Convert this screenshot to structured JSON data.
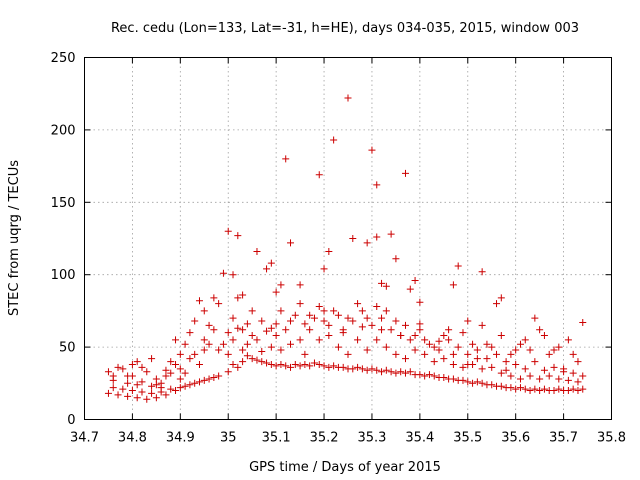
{
  "chart_data": {
    "type": "scatter",
    "title": "Rec. cedu (Lon=133, Lat=-31, h=HE), days 034-035, 2015, window 003",
    "xlabel": "GPS time / Days of year 2015",
    "ylabel": "STEC from uqrg / TECUs",
    "xlim": [
      34.7,
      35.8
    ],
    "ylim": [
      0,
      250
    ],
    "x_ticks": [
      34.7,
      34.8,
      34.9,
      35,
      35.1,
      35.2,
      35.3,
      35.4,
      35.5,
      35.6,
      35.7,
      35.8
    ],
    "x_tick_labels": [
      "34.7",
      "34.8",
      "34.9",
      "35",
      "35.1",
      "35.2",
      "35.3",
      "35.4",
      "35.5",
      "35.6",
      "35.7",
      "35.8"
    ],
    "y_ticks": [
      0,
      50,
      100,
      150,
      200,
      250
    ],
    "y_tick_labels": [
      "0",
      "50",
      "100",
      "150",
      "200",
      "250"
    ],
    "grid": true,
    "marker": "+",
    "color": "#cc0000",
    "series": [
      {
        "name": "STEC",
        "points": [
          [
            34.75,
            18
          ],
          [
            34.76,
            22
          ],
          [
            34.77,
            17
          ],
          [
            34.78,
            21
          ],
          [
            34.79,
            16
          ],
          [
            34.8,
            20
          ],
          [
            34.81,
            15
          ],
          [
            34.82,
            19
          ],
          [
            34.83,
            14
          ],
          [
            34.84,
            18
          ],
          [
            34.85,
            15
          ],
          [
            34.86,
            19
          ],
          [
            34.87,
            17
          ],
          [
            34.88,
            21
          ],
          [
            34.89,
            20
          ],
          [
            34.9,
            22
          ],
          [
            34.91,
            23
          ],
          [
            34.92,
            24
          ],
          [
            34.93,
            25
          ],
          [
            34.94,
            26
          ],
          [
            34.95,
            27
          ],
          [
            34.96,
            28
          ],
          [
            34.97,
            29
          ],
          [
            34.98,
            30
          ],
          [
            34.75,
            33
          ],
          [
            34.76,
            27
          ],
          [
            34.78,
            35
          ],
          [
            34.79,
            25
          ],
          [
            34.8,
            38
          ],
          [
            34.81,
            24
          ],
          [
            34.82,
            36
          ],
          [
            34.84,
            42
          ],
          [
            34.84,
            23
          ],
          [
            34.86,
            22
          ],
          [
            34.87,
            30
          ],
          [
            34.88,
            32
          ],
          [
            34.89,
            38
          ],
          [
            34.9,
            45
          ],
          [
            34.91,
            52
          ],
          [
            34.92,
            60
          ],
          [
            34.93,
            68
          ],
          [
            34.94,
            82
          ],
          [
            34.95,
            75
          ],
          [
            34.96,
            65
          ],
          [
            34.97,
            84
          ],
          [
            34.98,
            80
          ],
          [
            34.99,
            101
          ],
          [
            34.77,
            36
          ],
          [
            34.79,
            30
          ],
          [
            34.81,
            40
          ],
          [
            34.83,
            33
          ],
          [
            34.85,
            28
          ],
          [
            34.86,
            25
          ],
          [
            34.88,
            40
          ],
          [
            34.89,
            55
          ],
          [
            34.9,
            35
          ],
          [
            34.91,
            32
          ],
          [
            34.93,
            45
          ],
          [
            34.94,
            38
          ],
          [
            34.95,
            55
          ],
          [
            34.97,
            62
          ],
          [
            34.98,
            48
          ],
          [
            35.0,
            33
          ],
          [
            35.01,
            38
          ],
          [
            35.02,
            36
          ],
          [
            35.03,
            40
          ],
          [
            35.04,
            44
          ],
          [
            35.05,
            42
          ],
          [
            35.06,
            41
          ],
          [
            35.07,
            40
          ],
          [
            35.08,
            39
          ],
          [
            35.09,
            38
          ],
          [
            35.1,
            37
          ],
          [
            35.11,
            38
          ],
          [
            35.12,
            37
          ],
          [
            35.13,
            36
          ],
          [
            35.14,
            38
          ],
          [
            35.15,
            37
          ],
          [
            35.16,
            38
          ],
          [
            35.17,
            37
          ],
          [
            35.18,
            39
          ],
          [
            35.19,
            38
          ],
          [
            35.2,
            37
          ],
          [
            35.21,
            36
          ],
          [
            35.22,
            37
          ],
          [
            35.23,
            36
          ],
          [
            35.24,
            36
          ],
          [
            35.25,
            35
          ],
          [
            35.26,
            35
          ],
          [
            35.27,
            36
          ],
          [
            35.28,
            35
          ],
          [
            35.29,
            34
          ],
          [
            35.3,
            35
          ],
          [
            35.31,
            34
          ],
          [
            35.32,
            33
          ],
          [
            35.33,
            34
          ],
          [
            35.34,
            33
          ],
          [
            35.35,
            32
          ],
          [
            35.36,
            33
          ],
          [
            35.37,
            32
          ],
          [
            35.38,
            33
          ],
          [
            35.39,
            31
          ],
          [
            35.4,
            31
          ],
          [
            35.41,
            30
          ],
          [
            35.42,
            31
          ],
          [
            35.43,
            30
          ],
          [
            35.44,
            29
          ],
          [
            35.45,
            29
          ],
          [
            35.46,
            28
          ],
          [
            35.47,
            28
          ],
          [
            35.48,
            27
          ],
          [
            35.49,
            27
          ],
          [
            35.5,
            26
          ],
          [
            35.51,
            25
          ],
          [
            35.52,
            26
          ],
          [
            35.53,
            25
          ],
          [
            35.54,
            24
          ],
          [
            35.55,
            24
          ],
          [
            35.56,
            23
          ],
          [
            35.57,
            23
          ],
          [
            35.58,
            22
          ],
          [
            35.59,
            22
          ],
          [
            35.6,
            21
          ],
          [
            35.61,
            22
          ],
          [
            35.62,
            21
          ],
          [
            35.63,
            20
          ],
          [
            35.64,
            21
          ],
          [
            35.65,
            20
          ],
          [
            35.66,
            21
          ],
          [
            35.67,
            20
          ],
          [
            35.68,
            20
          ],
          [
            35.69,
            21
          ],
          [
            35.7,
            20
          ],
          [
            35.71,
            20
          ],
          [
            35.72,
            21
          ],
          [
            35.73,
            20
          ],
          [
            35.74,
            21
          ],
          [
            35.0,
            45
          ],
          [
            35.0,
            60
          ],
          [
            35.01,
            55
          ],
          [
            35.02,
            63
          ],
          [
            35.03,
            48
          ],
          [
            35.04,
            52
          ],
          [
            35.05,
            75
          ],
          [
            35.06,
            55
          ],
          [
            35.07,
            47
          ],
          [
            35.08,
            61
          ],
          [
            35.09,
            50
          ],
          [
            35.1,
            58
          ],
          [
            35.11,
            48
          ],
          [
            35.12,
            62
          ],
          [
            35.13,
            52
          ],
          [
            35.14,
            72
          ],
          [
            35.15,
            55
          ],
          [
            35.16,
            45
          ],
          [
            35.17,
            62
          ],
          [
            35.18,
            70
          ],
          [
            35.19,
            55
          ],
          [
            35.2,
            68
          ],
          [
            35.21,
            58
          ],
          [
            35.22,
            75
          ],
          [
            35.23,
            50
          ],
          [
            35.24,
            62
          ],
          [
            35.25,
            45
          ],
          [
            35.26,
            68
          ],
          [
            35.27,
            55
          ],
          [
            35.28,
            75
          ],
          [
            35.29,
            48
          ],
          [
            35.3,
            65
          ],
          [
            35.31,
            55
          ],
          [
            35.32,
            70
          ],
          [
            35.33,
            50
          ],
          [
            35.34,
            62
          ],
          [
            35.35,
            45
          ],
          [
            35.36,
            58
          ],
          [
            35.37,
            42
          ],
          [
            35.38,
            55
          ],
          [
            35.39,
            48
          ],
          [
            35.4,
            62
          ],
          [
            35.41,
            45
          ],
          [
            35.42,
            52
          ],
          [
            35.43,
            40
          ],
          [
            35.44,
            48
          ],
          [
            35.45,
            42
          ],
          [
            35.46,
            55
          ],
          [
            35.47,
            38
          ],
          [
            35.48,
            50
          ],
          [
            35.49,
            36
          ],
          [
            35.5,
            45
          ],
          [
            35.51,
            38
          ],
          [
            35.52,
            48
          ],
          [
            35.53,
            35
          ],
          [
            35.54,
            42
          ],
          [
            35.55,
            36
          ],
          [
            35.56,
            45
          ],
          [
            35.57,
            32
          ],
          [
            35.58,
            40
          ],
          [
            35.59,
            30
          ],
          [
            35.6,
            38
          ],
          [
            35.61,
            28
          ],
          [
            35.62,
            35
          ],
          [
            35.63,
            30
          ],
          [
            35.64,
            40
          ],
          [
            35.65,
            28
          ],
          [
            35.66,
            34
          ],
          [
            35.67,
            30
          ],
          [
            35.68,
            36
          ],
          [
            35.69,
            28
          ],
          [
            35.7,
            33
          ],
          [
            35.71,
            27
          ],
          [
            35.72,
            32
          ],
          [
            35.73,
            26
          ],
          [
            35.74,
            30
          ],
          [
            35.01,
            70
          ],
          [
            35.03,
            62
          ],
          [
            35.05,
            58
          ],
          [
            35.07,
            68
          ],
          [
            35.09,
            63
          ],
          [
            35.11,
            75
          ],
          [
            35.13,
            68
          ],
          [
            35.15,
            80
          ],
          [
            35.17,
            72
          ],
          [
            35.19,
            78
          ],
          [
            35.21,
            65
          ],
          [
            35.23,
            72
          ],
          [
            35.25,
            70
          ],
          [
            35.27,
            80
          ],
          [
            35.29,
            70
          ],
          [
            35.31,
            78
          ],
          [
            35.33,
            75
          ],
          [
            35.35,
            68
          ],
          [
            35.37,
            65
          ],
          [
            35.39,
            58
          ],
          [
            35.41,
            55
          ],
          [
            35.43,
            50
          ],
          [
            35.45,
            58
          ],
          [
            35.47,
            45
          ],
          [
            35.49,
            60
          ],
          [
            35.51,
            52
          ],
          [
            35.53,
            65
          ],
          [
            35.55,
            50
          ],
          [
            35.57,
            58
          ],
          [
            35.59,
            45
          ],
          [
            35.61,
            52
          ],
          [
            35.63,
            48
          ],
          [
            35.65,
            62
          ],
          [
            35.67,
            45
          ],
          [
            35.69,
            50
          ],
          [
            35.71,
            55
          ],
          [
            35.73,
            40
          ],
          [
            35.74,
            67
          ],
          [
            35.0,
            130
          ],
          [
            35.02,
            127
          ],
          [
            35.01,
            100
          ],
          [
            35.03,
            86
          ],
          [
            35.02,
            84
          ],
          [
            35.06,
            116
          ],
          [
            35.08,
            104
          ],
          [
            35.09,
            108
          ],
          [
            35.1,
            88
          ],
          [
            35.11,
            93
          ],
          [
            35.12,
            180
          ],
          [
            35.13,
            122
          ],
          [
            35.15,
            93
          ],
          [
            35.19,
            169
          ],
          [
            35.2,
            104
          ],
          [
            35.21,
            116
          ],
          [
            35.22,
            193
          ],
          [
            35.25,
            222
          ],
          [
            35.26,
            125
          ],
          [
            35.29,
            122
          ],
          [
            35.3,
            186
          ],
          [
            35.31,
            162
          ],
          [
            35.31,
            126
          ],
          [
            35.32,
            94
          ],
          [
            35.33,
            92
          ],
          [
            35.34,
            128
          ],
          [
            35.35,
            111
          ],
          [
            35.37,
            170
          ],
          [
            35.38,
            90
          ],
          [
            35.39,
            96
          ],
          [
            35.4,
            81
          ],
          [
            35.47,
            93
          ],
          [
            35.48,
            106
          ],
          [
            35.5,
            68
          ],
          [
            35.53,
            102
          ],
          [
            35.56,
            80
          ],
          [
            35.57,
            84
          ],
          [
            35.64,
            70
          ],
          [
            34.76,
            30
          ],
          [
            34.8,
            30
          ],
          [
            34.82,
            26
          ],
          [
            34.85,
            24
          ],
          [
            34.87,
            34
          ],
          [
            34.9,
            28
          ],
          [
            34.92,
            42
          ],
          [
            34.95,
            48
          ],
          [
            34.96,
            52
          ],
          [
            34.99,
            52
          ],
          [
            35.04,
            66
          ],
          [
            35.1,
            66
          ],
          [
            35.16,
            66
          ],
          [
            35.2,
            75
          ],
          [
            35.24,
            60
          ],
          [
            35.28,
            64
          ],
          [
            35.32,
            62
          ],
          [
            35.36,
            58
          ],
          [
            35.4,
            66
          ],
          [
            35.44,
            54
          ],
          [
            35.46,
            62
          ],
          [
            35.5,
            38
          ],
          [
            35.52,
            42
          ],
          [
            35.54,
            52
          ],
          [
            35.58,
            34
          ],
          [
            35.6,
            48
          ],
          [
            35.62,
            55
          ],
          [
            35.66,
            58
          ],
          [
            35.68,
            48
          ],
          [
            35.7,
            35
          ],
          [
            35.72,
            45
          ]
        ]
      }
    ]
  }
}
